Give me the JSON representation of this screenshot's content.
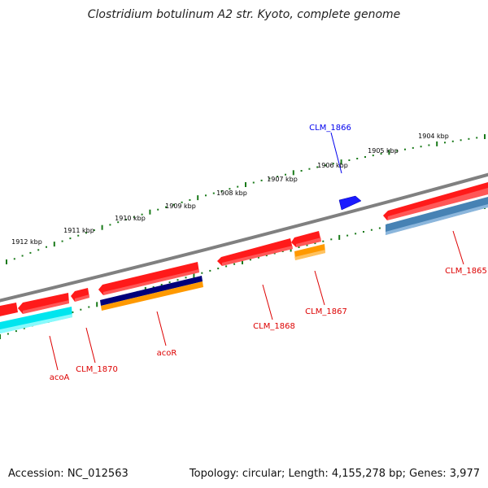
{
  "title": "Clostridium botulinum A2 str. Kyoto, complete genome",
  "footer": {
    "accession": "Accession: NC_012563",
    "summary": "Topology: circular; Length: 4,155,278 bp; Genes: 3,977"
  },
  "ticks": [
    "1904 kbp",
    "1905 kbp",
    "1906 kbp",
    "1907 kbp",
    "1908 kbp",
    "1909 kbp",
    "1910 kbp",
    "1911 kbp",
    "1912 kbp"
  ],
  "genes": [
    {
      "name": "CLM_1866",
      "strand": "forward",
      "color": "#0000ee"
    },
    {
      "name": "CLM_1865",
      "strand": "reverse",
      "color": "#dd0000"
    },
    {
      "name": "CLM_1867",
      "strand": "reverse",
      "color": "#dd0000"
    },
    {
      "name": "CLM_1868",
      "strand": "reverse",
      "color": "#dd0000"
    },
    {
      "name": "acoR",
      "strand": "reverse",
      "color": "#dd0000"
    },
    {
      "name": "CLM_1870",
      "strand": "reverse",
      "color": "#dd0000"
    },
    {
      "name": "acoA",
      "strand": "reverse",
      "color": "#dd0000"
    }
  ],
  "colors": {
    "backbone": "#808080",
    "tick": "#1a7a1a",
    "feature_red": "#ff1a1a",
    "feature_blue": "#1a1aff",
    "cog_navy": "#00007a",
    "cog_orange": "#ff9900",
    "cog_cyan": "#00e5ee",
    "cog_steel": "#4682b4"
  }
}
